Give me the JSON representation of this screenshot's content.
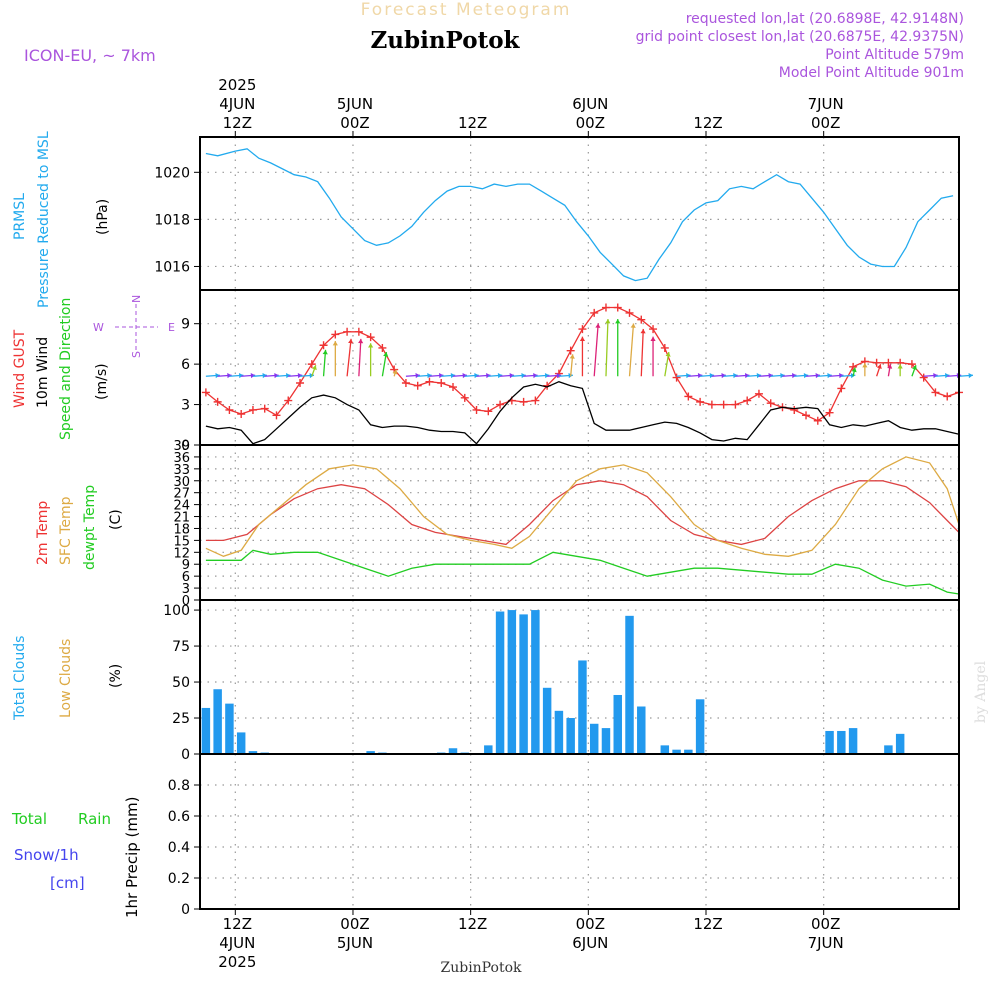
{
  "header": {
    "model": "ICON-EU, ~ 7km",
    "forecast_title": "Forecast Meteogram",
    "location": "ZubinPotok",
    "requested": "requested lon,lat (20.6898E, 42.9148N)",
    "closest": "grid point closest lon,lat (20.6875E, 42.9375N)",
    "point_altitude": "Point Altitude 579m",
    "model_altitude": "Model Point Altitude 901m",
    "footer_location": "ZubinPotok",
    "credit": "by Angel"
  },
  "time_axis": {
    "x_start_hour": -3,
    "x_end_hour": 61.5,
    "ticks": [
      {
        "hour": 0,
        "top": [
          "2025",
          "4JUN",
          "12Z"
        ],
        "bottom": [
          "12Z",
          "4JUN",
          "2025"
        ]
      },
      {
        "hour": 10,
        "top": [
          "5JUN",
          "00Z"
        ],
        "bottom": [
          "00Z",
          "5JUN"
        ]
      },
      {
        "hour": 20,
        "top": [
          "12Z"
        ],
        "bottom": [
          "12Z"
        ]
      },
      {
        "hour": 30,
        "top": [
          "6JUN",
          "00Z"
        ],
        "bottom": [
          "00Z",
          "6JUN"
        ]
      },
      {
        "hour": 40,
        "top": [
          "12Z"
        ],
        "bottom": [
          "12Z"
        ]
      },
      {
        "hour": 50,
        "top": [
          "7JUN",
          "00Z"
        ],
        "bottom": [
          "00Z",
          "7JUN"
        ]
      }
    ]
  },
  "colors": {
    "pressure": "#22aaee",
    "gust": "#ee3333",
    "wind": "#000000",
    "temp2m": "#dd4444",
    "sfc": "#ddaa44",
    "dewpt": "#22cc22",
    "clouds": "#2299ee",
    "low_clouds": "#ddaa44",
    "rain": "#22cc22",
    "snow": "#4444ee",
    "meta": "#aa55dd",
    "grid": "#999999",
    "credit": "#dddddd"
  },
  "chart_data": [
    {
      "type": "line",
      "panel": "pressure",
      "labels": [
        "PRMSL",
        "Pressure Reduced to MSL",
        "(hPa)"
      ],
      "ylim": [
        1015,
        1021.5
      ],
      "yticks": [
        1016,
        1018,
        1020
      ],
      "series": [
        {
          "name": "PRMSL",
          "x": [
            -2.5,
            -1.5,
            0,
            1,
            2,
            3,
            5,
            6,
            7,
            8,
            9,
            10,
            11,
            12,
            13,
            14,
            15,
            16,
            17,
            18,
            19,
            20,
            21,
            22,
            23,
            24,
            25,
            26,
            27,
            28,
            29,
            30,
            31,
            32,
            33,
            34,
            35,
            36,
            37,
            38,
            39,
            40,
            41,
            42,
            43,
            44,
            45,
            46,
            47,
            48,
            49,
            50,
            51,
            52,
            53,
            54,
            55,
            56,
            57,
            58,
            59,
            60,
            61
          ],
          "y": [
            1020.8,
            1020.7,
            1020.9,
            1021.0,
            1020.6,
            1020.4,
            1019.9,
            1019.8,
            1019.6,
            1018.9,
            1018.1,
            1017.6,
            1017.1,
            1016.9,
            1017.0,
            1017.3,
            1017.7,
            1018.3,
            1018.8,
            1019.2,
            1019.4,
            1019.4,
            1019.3,
            1019.5,
            1019.4,
            1019.5,
            1019.5,
            1019.2,
            1018.9,
            1018.6,
            1017.9,
            1017.3,
            1016.6,
            1016.1,
            1015.6,
            1015.4,
            1015.5,
            1016.3,
            1017.0,
            1017.9,
            1018.4,
            1018.7,
            1018.8,
            1019.3,
            1019.4,
            1019.3,
            1019.6,
            1019.9,
            1019.6,
            1019.5,
            1018.9,
            1018.3,
            1017.6,
            1016.9,
            1016.4,
            1016.1,
            1016.0,
            1016.0,
            1016.8,
            1017.9,
            1018.4,
            1018.9,
            1019.0
          ]
        }
      ]
    },
    {
      "type": "line",
      "panel": "wind",
      "labels": [
        "Wind GUST",
        "10m Wind",
        "Speed and Direction",
        "(m/s)"
      ],
      "compass": {
        "n": "N",
        "s": "S",
        "w": "W",
        "e": "E"
      },
      "ylim": [
        0,
        11.5
      ],
      "yticks": [
        0,
        3,
        6,
        9
      ],
      "series": [
        {
          "name": "Wind GUST",
          "x": [
            -2.5,
            -1.5,
            -0.5,
            0.5,
            1.5,
            2.5,
            3.5,
            4.5,
            5.5,
            6.5,
            7.5,
            8.5,
            9.5,
            10.5,
            11.5,
            12.5,
            13.5,
            14.5,
            15.5,
            16.5,
            17.5,
            18.5,
            19.5,
            20.5,
            21.5,
            22.5,
            23.5,
            24.5,
            25.5,
            26.5,
            27.5,
            28.5,
            29.5,
            30.5,
            31.5,
            32.5,
            33.5,
            34.5,
            35.5,
            36.5,
            37.5,
            38.5,
            39.5,
            40.5,
            41.5,
            42.5,
            43.5,
            44.5,
            45.5,
            46.5,
            47.5,
            48.5,
            49.5,
            50.5,
            51.5,
            52.5,
            53.5,
            54.5,
            55.5,
            56.5,
            57.5,
            58.5,
            59.5,
            60.5,
            61.5
          ],
          "y": [
            3.9,
            3.2,
            2.6,
            2.3,
            2.6,
            2.7,
            2.2,
            3.3,
            4.6,
            6.0,
            7.4,
            8.2,
            8.4,
            8.4,
            8.0,
            7.2,
            5.6,
            4.6,
            4.4,
            4.7,
            4.6,
            4.3,
            3.5,
            2.6,
            2.5,
            3.0,
            3.3,
            3.2,
            3.3,
            4.4,
            5.3,
            7.0,
            8.6,
            9.8,
            10.2,
            10.2,
            9.8,
            9.3,
            8.6,
            7.2,
            5.0,
            3.6,
            3.2,
            3.0,
            3.0,
            3.0,
            3.3,
            3.8,
            3.1,
            2.8,
            2.6,
            2.2,
            1.8,
            2.4,
            4.2,
            5.8,
            6.2,
            6.1,
            6.1,
            6.1,
            6.0,
            5.0,
            3.9,
            3.6,
            3.9
          ]
        },
        {
          "name": "10m Wind",
          "x": [
            -2.5,
            -1.5,
            -0.5,
            0.5,
            1.5,
            2.5,
            3.5,
            4.5,
            5.5,
            6.5,
            7.5,
            8.5,
            9.5,
            10.5,
            11.5,
            12.5,
            13.5,
            14.5,
            15.5,
            16.5,
            17.5,
            18.5,
            19.5,
            20.5,
            21.5,
            22.5,
            23.5,
            24.5,
            25.5,
            26.5,
            27.5,
            28.5,
            29.5,
            30.5,
            31.5,
            32.5,
            33.5,
            34.5,
            35.5,
            36.5,
            37.5,
            38.5,
            39.5,
            40.5,
            41.5,
            42.5,
            43.5,
            44.5,
            45.5,
            46.5,
            47.5,
            48.5,
            49.5,
            50.5,
            51.5,
            52.5,
            53.5,
            54.5,
            55.5,
            56.5,
            57.5,
            58.5,
            59.5,
            60.5,
            61.5
          ],
          "y": [
            1.4,
            1.2,
            1.3,
            1.1,
            0.1,
            0.4,
            1.2,
            2.0,
            2.8,
            3.5,
            3.7,
            3.5,
            3.0,
            2.6,
            1.5,
            1.3,
            1.4,
            1.4,
            1.3,
            1.1,
            1.0,
            1.0,
            0.9,
            0.1,
            1.2,
            2.5,
            3.5,
            4.3,
            4.5,
            4.3,
            4.7,
            4.4,
            4.2,
            1.6,
            1.1,
            1.1,
            1.1,
            1.3,
            1.5,
            1.7,
            1.6,
            1.3,
            0.9,
            0.4,
            0.3,
            0.5,
            0.4,
            1.5,
            2.6,
            2.8,
            2.7,
            2.8,
            2.7,
            1.5,
            1.3,
            1.5,
            1.4,
            1.6,
            1.8,
            1.3,
            1.1,
            1.2,
            1.2,
            1.0,
            0.8
          ]
        }
      ]
    },
    {
      "type": "line",
      "panel": "temperature",
      "labels": [
        "2m Temp",
        "SFC Temp",
        "dewpt Temp",
        "(C)"
      ],
      "ylim": [
        0,
        39
      ],
      "yticks": [
        0,
        3,
        6,
        9,
        12,
        15,
        18,
        21,
        24,
        27,
        30,
        33,
        36,
        39
      ],
      "series": [
        {
          "name": "2m Temp",
          "x": [
            -2.5,
            -1,
            1,
            3,
            5,
            7,
            9,
            11,
            13,
            15,
            17,
            19,
            21,
            23,
            25,
            27,
            29,
            31,
            33,
            35,
            37,
            39,
            41,
            43,
            45,
            47,
            49,
            51,
            53,
            55,
            57,
            59,
            61,
            61.5
          ],
          "y": [
            15.0,
            15.0,
            16.5,
            21.5,
            25.5,
            28.0,
            29.0,
            28.0,
            24.0,
            19.0,
            17.0,
            16.0,
            15.0,
            14.0,
            19.0,
            25.0,
            29.0,
            30.0,
            29.0,
            26.0,
            20.0,
            16.5,
            15.0,
            14.0,
            15.5,
            21.0,
            25.0,
            28.0,
            30.0,
            30.0,
            28.5,
            24.5,
            18.5,
            17.0
          ]
        },
        {
          "name": "SFC Temp",
          "x": [
            -2.5,
            -1,
            0.5,
            2,
            4,
            6,
            8,
            10,
            12,
            14,
            16,
            18,
            20,
            22,
            23.5,
            25,
            27,
            29,
            31,
            33,
            35,
            37,
            39,
            41,
            43,
            45,
            47,
            49,
            51,
            53,
            55,
            57,
            59,
            60.5,
            61.5
          ],
          "y": [
            13.0,
            11.0,
            12.5,
            19.0,
            24.0,
            29.0,
            33.0,
            34.0,
            33.0,
            28.0,
            21.0,
            16.5,
            15.0,
            14.0,
            13.0,
            16.0,
            23.0,
            30.0,
            33.0,
            34.0,
            32.0,
            26.0,
            19.0,
            15.0,
            13.0,
            11.5,
            11.0,
            12.5,
            19.0,
            28.0,
            33.0,
            36.0,
            34.5,
            28.0,
            19.0
          ]
        },
        {
          "name": "dewpt Temp",
          "x": [
            -2.5,
            -1,
            0.5,
            1.5,
            3,
            5,
            7,
            9,
            11,
            13,
            15,
            17,
            19,
            21,
            23,
            25,
            27,
            29,
            31,
            33,
            35,
            37,
            39,
            41,
            43,
            45,
            47,
            49,
            51,
            53,
            55,
            57,
            59,
            60.5,
            61.5
          ],
          "y": [
            10.0,
            10.0,
            10.0,
            12.5,
            11.5,
            12.0,
            12.0,
            10.0,
            8.0,
            6.0,
            8.0,
            9.0,
            9.0,
            9.0,
            9.0,
            9.0,
            12.0,
            11.0,
            10.0,
            8.0,
            6.0,
            7.0,
            8.0,
            8.0,
            7.5,
            7.0,
            6.5,
            6.5,
            9.0,
            8.0,
            5.0,
            3.5,
            4.0,
            2.0,
            1.5
          ]
        }
      ]
    },
    {
      "type": "bar",
      "panel": "clouds",
      "labels": [
        "Total Clouds",
        "Low Clouds",
        "(%)"
      ],
      "ylim": [
        0,
        107
      ],
      "yticks": [
        0,
        25,
        50,
        75,
        100
      ],
      "series": [
        {
          "name": "Total Clouds",
          "x": [
            -2.5,
            -1.5,
            -0.5,
            0.5,
            1.5,
            2.5,
            3.5,
            4.5,
            5.5,
            6.5,
            7.5,
            8.5,
            9.5,
            10.5,
            11.5,
            12.5,
            13.5,
            14.5,
            15.5,
            16.5,
            17.5,
            18.5,
            19.5,
            20.5,
            21.5,
            22.5,
            23.5,
            24.5,
            25.5,
            26.5,
            27.5,
            28.5,
            29.5,
            30.5,
            31.5,
            32.5,
            33.5,
            34.5,
            35.5,
            36.5,
            37.5,
            38.5,
            39.5,
            40.5,
            41.5,
            42.5,
            43.5,
            44.5,
            45.5,
            46.5,
            47.5,
            48.5,
            49.5,
            50.5,
            51.5,
            52.5,
            53.5,
            54.5,
            55.5,
            56.5,
            57.5,
            58.5,
            59.5,
            60.5,
            61.5
          ],
          "values": [
            32,
            45,
            35,
            15,
            2,
            1,
            0,
            0,
            0,
            0,
            0,
            0,
            0,
            0,
            2,
            1,
            0,
            0,
            0,
            0,
            1,
            4,
            1,
            0,
            6,
            99,
            100,
            97,
            100,
            46,
            30,
            25,
            65,
            21,
            18,
            41,
            96,
            33,
            0,
            6,
            3,
            3,
            38,
            0,
            0,
            0,
            0,
            0,
            0,
            0,
            0,
            0,
            0,
            16,
            16,
            18,
            0,
            0,
            6,
            14,
            0,
            0,
            0,
            0,
            0
          ]
        }
      ]
    },
    {
      "type": "line",
      "panel": "precip",
      "labels": [
        "Total",
        "Rain",
        "Snow/1h",
        "[cm]",
        "1hr Precip (mm)"
      ],
      "ylim": [
        0,
        1.0
      ],
      "yticks": [
        0,
        0.2,
        0.4,
        0.6,
        0.8
      ],
      "ytick_labels": [
        "0",
        "0.2",
        "0.4",
        "0.6",
        "0.8"
      ],
      "series": [
        {
          "name": "Total",
          "x": [
            -3,
            61.5
          ],
          "y": [
            0,
            0
          ]
        }
      ]
    }
  ]
}
